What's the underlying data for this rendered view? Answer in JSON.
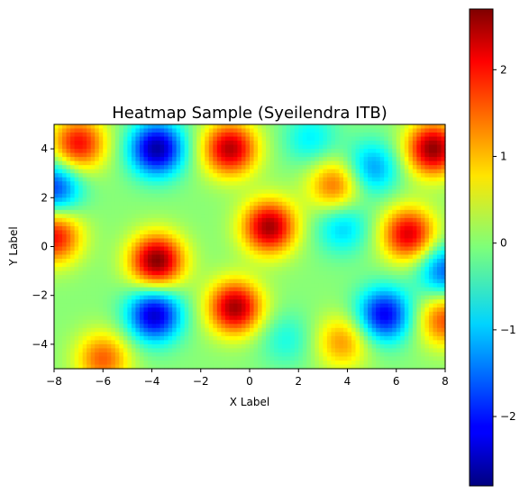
{
  "chart_data": {
    "type": "heatmap",
    "title": "Heatmap Sample (Syeilendra ITB)",
    "xlabel": "X Label",
    "ylabel": "Y Label",
    "xlim": [
      -8,
      8
    ],
    "ylim": [
      -5,
      5
    ],
    "x_ticks": [
      "−8",
      "−6",
      "−4",
      "−2",
      "0",
      "2",
      "4",
      "6",
      "8"
    ],
    "y_ticks": [
      "−4",
      "−2",
      "0",
      "2",
      "4"
    ],
    "colormap": "jet",
    "color_range": [
      -2.8,
      2.7
    ],
    "colorbar_ticks": [
      "−2",
      "−1",
      "0",
      "1",
      "2"
    ],
    "grid": false,
    "blobs": [
      {
        "x": -7.0,
        "y": 4.2,
        "v": 2.0
      },
      {
        "x": -3.8,
        "y": 4.0,
        "v": -2.6
      },
      {
        "x": -0.8,
        "y": 4.0,
        "v": 2.4
      },
      {
        "x": 2.5,
        "y": 4.4,
        "v": -0.8
      },
      {
        "x": 5.0,
        "y": 3.2,
        "v": -1.3
      },
      {
        "x": 7.5,
        "y": 4.0,
        "v": 2.6
      },
      {
        "x": -8.0,
        "y": 2.4,
        "v": -1.8
      },
      {
        "x": 3.5,
        "y": 2.5,
        "v": 1.5
      },
      {
        "x": -8.0,
        "y": 0.4,
        "v": 2.0
      },
      {
        "x": 0.8,
        "y": 0.8,
        "v": 2.5
      },
      {
        "x": 3.8,
        "y": 0.8,
        "v": -1.0
      },
      {
        "x": 6.5,
        "y": 0.5,
        "v": 2.2
      },
      {
        "x": -3.8,
        "y": -0.6,
        "v": 2.7
      },
      {
        "x": 8.0,
        "y": -1.0,
        "v": -1.6
      },
      {
        "x": -3.9,
        "y": -2.8,
        "v": -2.4
      },
      {
        "x": -0.6,
        "y": -2.5,
        "v": 2.5
      },
      {
        "x": 5.5,
        "y": -2.8,
        "v": -2.2
      },
      {
        "x": 8.0,
        "y": -3.0,
        "v": 1.6
      },
      {
        "x": -6.0,
        "y": -4.6,
        "v": 1.5
      },
      {
        "x": 1.5,
        "y": -3.8,
        "v": -0.6
      },
      {
        "x": 3.8,
        "y": -3.9,
        "v": 1.2
      }
    ]
  }
}
